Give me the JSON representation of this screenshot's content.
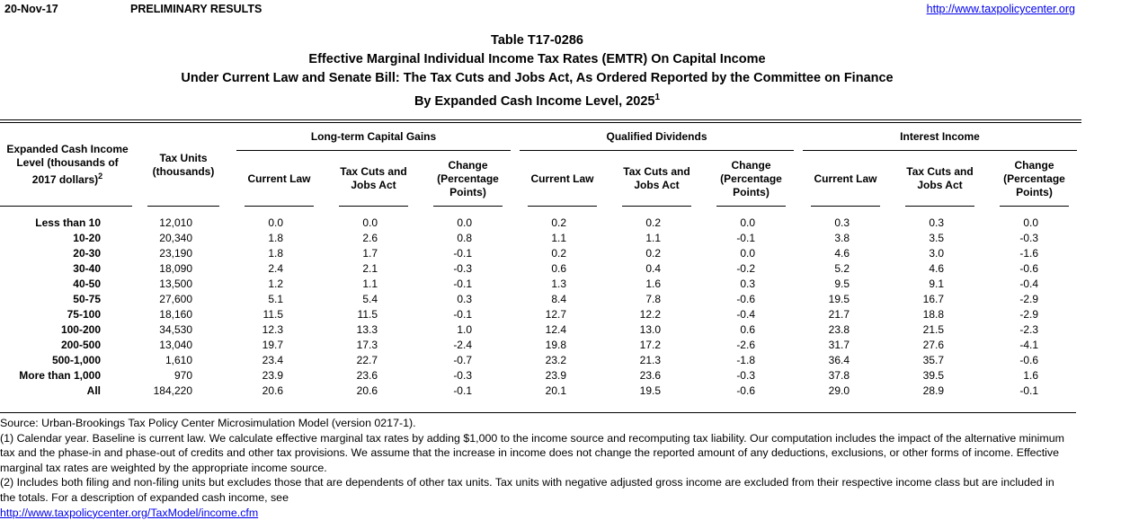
{
  "page": {
    "date": "20-Nov-17",
    "preliminary": "PRELIMINARY RESULTS",
    "site_url": "http://www.taxpolicycenter.org"
  },
  "title": {
    "line1": "Table T17-0286",
    "line2": "Effective Marginal Individual Income Tax Rates (EMTR) On Capital Income",
    "line3": "Under Current Law and Senate Bill: The Tax Cuts and Jobs Act, As Ordered Reported by the Committee on Finance",
    "line4": "By Expanded Cash Income Level, 2025",
    "line4_sup": "1"
  },
  "table": {
    "row_header_label": "Expanded Cash Income Level (thousands of 2017 dollars)",
    "row_header_sup": "2",
    "tax_units_header": "Tax Units (thousands)",
    "groups": [
      {
        "label": "Long-term Capital Gains",
        "columns": [
          "Current Law",
          "Tax Cuts and Jobs Act",
          "Change (Percentage Points)"
        ]
      },
      {
        "label": "Qualified Dividends",
        "columns": [
          "Current Law",
          "Tax Cuts and Jobs Act",
          "Change (Percentage Points)"
        ]
      },
      {
        "label": "Interest Income",
        "columns": [
          "Current Law",
          "Tax Cuts and Jobs Act",
          "Change (Percentage Points)"
        ]
      }
    ],
    "rows": [
      {
        "label": "Less than 10",
        "tax_units": "12,010",
        "values": [
          "0.0",
          "0.0",
          "0.0",
          "0.2",
          "0.2",
          "0.0",
          "0.3",
          "0.3",
          "0.0"
        ]
      },
      {
        "label": "10-20",
        "tax_units": "20,340",
        "values": [
          "1.8",
          "2.6",
          "0.8",
          "1.1",
          "1.1",
          "-0.1",
          "3.8",
          "3.5",
          "-0.3"
        ]
      },
      {
        "label": "20-30",
        "tax_units": "23,190",
        "values": [
          "1.8",
          "1.7",
          "-0.1",
          "0.2",
          "0.2",
          "0.0",
          "4.6",
          "3.0",
          "-1.6"
        ]
      },
      {
        "label": "30-40",
        "tax_units": "18,090",
        "values": [
          "2.4",
          "2.1",
          "-0.3",
          "0.6",
          "0.4",
          "-0.2",
          "5.2",
          "4.6",
          "-0.6"
        ]
      },
      {
        "label": "40-50",
        "tax_units": "13,500",
        "values": [
          "1.2",
          "1.1",
          "-0.1",
          "1.3",
          "1.6",
          "0.3",
          "9.5",
          "9.1",
          "-0.4"
        ]
      },
      {
        "label": "50-75",
        "tax_units": "27,600",
        "values": [
          "5.1",
          "5.4",
          "0.3",
          "8.4",
          "7.8",
          "-0.6",
          "19.5",
          "16.7",
          "-2.9"
        ]
      },
      {
        "label": "75-100",
        "tax_units": "18,160",
        "values": [
          "11.5",
          "11.5",
          "-0.1",
          "12.7",
          "12.2",
          "-0.4",
          "21.7",
          "18.8",
          "-2.9"
        ]
      },
      {
        "label": "100-200",
        "tax_units": "34,530",
        "values": [
          "12.3",
          "13.3",
          "1.0",
          "12.4",
          "13.0",
          "0.6",
          "23.8",
          "21.5",
          "-2.3"
        ]
      },
      {
        "label": "200-500",
        "tax_units": "13,040",
        "values": [
          "19.7",
          "17.3",
          "-2.4",
          "19.8",
          "17.2",
          "-2.6",
          "31.7",
          "27.6",
          "-4.1"
        ]
      },
      {
        "label": "500-1,000",
        "tax_units": "1,610",
        "values": [
          "23.4",
          "22.7",
          "-0.7",
          "23.2",
          "21.3",
          "-1.8",
          "36.4",
          "35.7",
          "-0.6"
        ]
      },
      {
        "label": "More than 1,000",
        "tax_units": "970",
        "values": [
          "23.9",
          "23.6",
          "-0.3",
          "23.9",
          "23.6",
          "-0.3",
          "37.8",
          "39.5",
          "1.6"
        ]
      },
      {
        "label": "All",
        "tax_units": "184,220",
        "values": [
          "20.6",
          "20.6",
          "-0.1",
          "20.1",
          "19.5",
          "-0.6",
          "29.0",
          "28.9",
          "-0.1"
        ]
      }
    ]
  },
  "footer": {
    "source": "Source: Urban-Brookings Tax Policy Center Microsimulation Model (version 0217-1).",
    "note1": "(1) Calendar year. Baseline is current law. We calculate effective marginal tax rates by adding $1,000 to the income source and recomputing tax liability. Our computation includes the impact of the alternative minimum tax and the phase-in and phase-out of credits and other tax provisions. We assume that the increase in income does not change the reported amount of any deductions, exclusions, or other forms of income. Effective marginal tax rates are weighted by the appropriate income source.",
    "note2": "(2) Includes both filing and non-filing units but excludes those that are dependents of other tax units. Tax units with negative adjusted gross income are excluded from their respective income class but are included in the totals. For a description of expanded cash income, see",
    "model_url": "http://www.taxpolicycenter.org/TaxModel/income.cfm"
  },
  "colors": {
    "link": "#0000ee",
    "text": "#000000",
    "rule": "#000000"
  }
}
